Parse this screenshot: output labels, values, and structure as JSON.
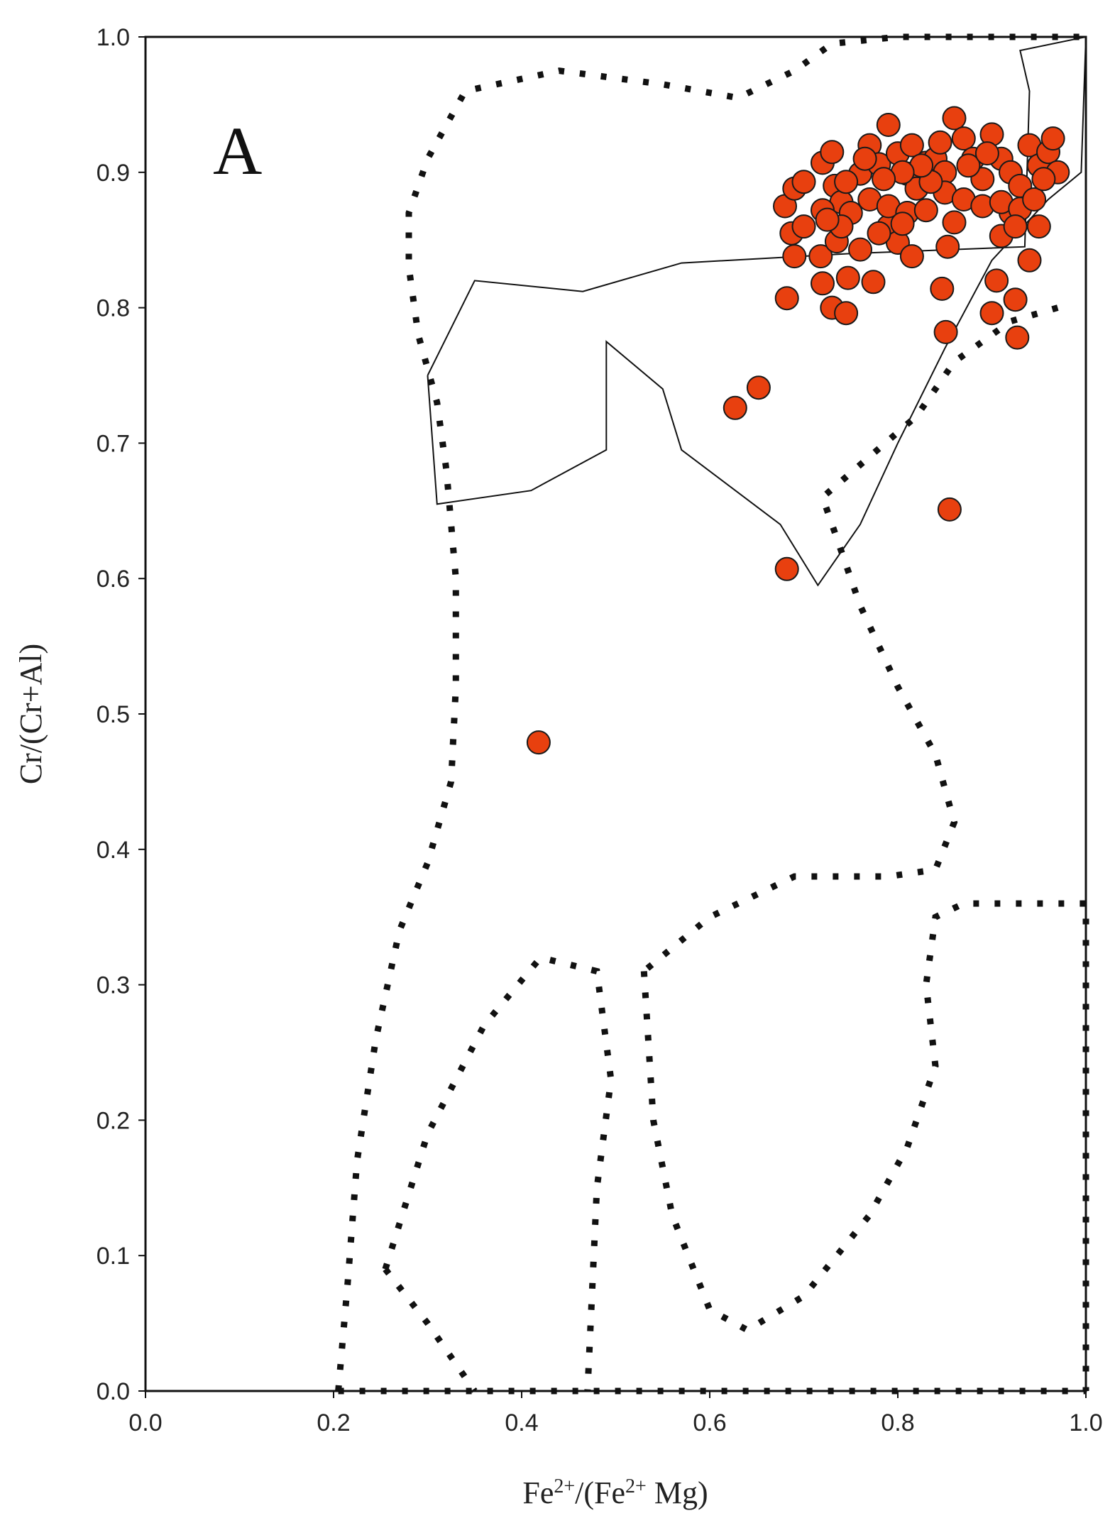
{
  "chart_data": {
    "type": "scatter",
    "panel_label": "A",
    "xlabel": {
      "parts": [
        [
          "Fe",
          ""
        ],
        [
          "2+",
          "sup"
        ],
        [
          "/(Fe",
          ""
        ],
        [
          "2+",
          "sup"
        ],
        [
          " Mg)",
          ""
        ]
      ]
    },
    "ylabel": "Cr/(Cr+Al)",
    "xlim": [
      0,
      1
    ],
    "ylim": [
      0,
      1
    ],
    "x_ticks": [
      "0.0",
      "0.2",
      "0.4",
      "0.6",
      "0.8",
      "1.0"
    ],
    "y_ticks": [
      "0.0",
      "0.1",
      "0.2",
      "0.3",
      "0.4",
      "0.5",
      "0.6",
      "0.7",
      "0.8",
      "0.9",
      "1.0"
    ],
    "grid": false,
    "marker_color": "#e8400f",
    "points": [
      [
        0.418,
        0.479
      ],
      [
        0.627,
        0.726
      ],
      [
        0.652,
        0.741
      ],
      [
        0.682,
        0.607
      ],
      [
        0.855,
        0.651
      ],
      [
        0.682,
        0.807
      ],
      [
        0.72,
        0.818
      ],
      [
        0.73,
        0.8
      ],
      [
        0.745,
        0.796
      ],
      [
        0.747,
        0.822
      ],
      [
        0.774,
        0.819
      ],
      [
        0.847,
        0.814
      ],
      [
        0.851,
        0.782
      ],
      [
        0.9,
        0.796
      ],
      [
        0.905,
        0.82
      ],
      [
        0.925,
        0.806
      ],
      [
        0.927,
        0.778
      ],
      [
        0.687,
        0.855
      ],
      [
        0.69,
        0.838
      ],
      [
        0.718,
        0.838
      ],
      [
        0.735,
        0.849
      ],
      [
        0.76,
        0.843
      ],
      [
        0.79,
        0.86
      ],
      [
        0.8,
        0.848
      ],
      [
        0.815,
        0.838
      ],
      [
        0.853,
        0.845
      ],
      [
        0.91,
        0.853
      ],
      [
        0.94,
        0.835
      ],
      [
        0.95,
        0.86
      ],
      [
        0.92,
        0.87
      ],
      [
        0.68,
        0.875
      ],
      [
        0.69,
        0.888
      ],
      [
        0.7,
        0.893
      ],
      [
        0.72,
        0.907
      ],
      [
        0.73,
        0.915
      ],
      [
        0.733,
        0.89
      ],
      [
        0.74,
        0.878
      ],
      [
        0.76,
        0.899
      ],
      [
        0.77,
        0.92
      ],
      [
        0.78,
        0.906
      ],
      [
        0.79,
        0.935
      ],
      [
        0.8,
        0.914
      ],
      [
        0.81,
        0.899
      ],
      [
        0.82,
        0.888
      ],
      [
        0.83,
        0.907
      ],
      [
        0.84,
        0.91
      ],
      [
        0.85,
        0.9
      ],
      [
        0.86,
        0.94
      ],
      [
        0.87,
        0.925
      ],
      [
        0.88,
        0.91
      ],
      [
        0.89,
        0.895
      ],
      [
        0.9,
        0.928
      ],
      [
        0.91,
        0.91
      ],
      [
        0.92,
        0.9
      ],
      [
        0.93,
        0.89
      ],
      [
        0.94,
        0.92
      ],
      [
        0.95,
        0.905
      ],
      [
        0.96,
        0.915
      ],
      [
        0.965,
        0.925
      ],
      [
        0.97,
        0.9
      ],
      [
        0.75,
        0.87
      ],
      [
        0.77,
        0.88
      ],
      [
        0.79,
        0.875
      ],
      [
        0.81,
        0.87
      ],
      [
        0.83,
        0.872
      ],
      [
        0.85,
        0.885
      ],
      [
        0.87,
        0.88
      ],
      [
        0.89,
        0.875
      ],
      [
        0.91,
        0.878
      ],
      [
        0.93,
        0.873
      ],
      [
        0.7,
        0.86
      ],
      [
        0.72,
        0.872
      ],
      [
        0.74,
        0.86
      ],
      [
        0.78,
        0.855
      ],
      [
        0.805,
        0.862
      ],
      [
        0.86,
        0.863
      ],
      [
        0.925,
        0.86
      ],
      [
        0.945,
        0.88
      ],
      [
        0.955,
        0.895
      ],
      [
        0.875,
        0.905
      ],
      [
        0.895,
        0.914
      ],
      [
        0.815,
        0.92
      ],
      [
        0.835,
        0.893
      ],
      [
        0.765,
        0.91
      ],
      [
        0.745,
        0.893
      ],
      [
        0.845,
        0.922
      ],
      [
        0.825,
        0.905
      ],
      [
        0.805,
        0.9
      ],
      [
        0.785,
        0.895
      ],
      [
        0.725,
        0.865
      ]
    ],
    "regions": {
      "solid": [
        [
          [
            0.3,
            0.75
          ],
          [
            0.35,
            0.82
          ],
          [
            0.465,
            0.812
          ],
          [
            0.57,
            0.833
          ],
          [
            0.75,
            0.84
          ],
          [
            0.935,
            0.845
          ],
          [
            0.94,
            0.96
          ],
          [
            0.93,
            0.99
          ],
          [
            1.0,
            1.0
          ],
          [
            0.995,
            0.9
          ],
          [
            0.96,
            0.88
          ],
          [
            0.9,
            0.835
          ],
          [
            0.85,
            0.77
          ],
          [
            0.8,
            0.7
          ],
          [
            0.76,
            0.64
          ],
          [
            0.715,
            0.595
          ],
          [
            0.675,
            0.64
          ],
          [
            0.57,
            0.695
          ],
          [
            0.55,
            0.74
          ],
          [
            0.49,
            0.775
          ],
          [
            0.49,
            0.695
          ],
          [
            0.41,
            0.665
          ],
          [
            0.31,
            0.655
          ],
          [
            0.3,
            0.75
          ]
        ]
      ],
      "dotted": [
        [
          [
            0.205,
            0.0
          ],
          [
            0.215,
            0.08
          ],
          [
            0.225,
            0.17
          ],
          [
            0.245,
            0.26
          ],
          [
            0.27,
            0.34
          ],
          [
            0.3,
            0.39
          ],
          [
            0.325,
            0.45
          ],
          [
            0.33,
            0.52
          ],
          [
            0.33,
            0.6
          ],
          [
            0.32,
            0.68
          ],
          [
            0.31,
            0.73
          ],
          [
            0.29,
            0.78
          ],
          [
            0.28,
            0.83
          ],
          [
            0.28,
            0.87
          ],
          [
            0.3,
            0.91
          ],
          [
            0.34,
            0.96
          ],
          [
            0.44,
            0.975
          ],
          [
            0.55,
            0.965
          ],
          [
            0.63,
            0.955
          ],
          [
            0.69,
            0.975
          ],
          [
            0.73,
            0.995
          ],
          [
            0.8,
            1.0
          ],
          [
            1.0,
            1.0
          ]
        ],
        [
          [
            0.97,
            0.8
          ],
          [
            0.92,
            0.79
          ],
          [
            0.86,
            0.76
          ],
          [
            0.82,
            0.72
          ],
          [
            0.72,
            0.66
          ],
          [
            0.76,
            0.58
          ],
          [
            0.8,
            0.52
          ],
          [
            0.84,
            0.47
          ],
          [
            0.86,
            0.42
          ],
          [
            0.84,
            0.385
          ],
          [
            0.79,
            0.38
          ],
          [
            0.69,
            0.38
          ],
          [
            0.6,
            0.35
          ],
          [
            0.53,
            0.31
          ]
        ],
        [
          [
            0.53,
            0.31
          ],
          [
            0.54,
            0.2
          ],
          [
            0.56,
            0.13
          ],
          [
            0.6,
            0.06
          ],
          [
            0.64,
            0.045
          ],
          [
            0.7,
            0.07
          ],
          [
            0.77,
            0.13
          ],
          [
            0.81,
            0.18
          ],
          [
            0.84,
            0.24
          ],
          [
            0.83,
            0.3
          ],
          [
            0.84,
            0.35
          ],
          [
            0.87,
            0.36
          ],
          [
            1.0,
            0.36
          ],
          [
            1.0,
            0.0
          ]
        ],
        [
          [
            0.205,
            0.0
          ],
          [
            1.0,
            0.0
          ]
        ],
        [
          [
            0.255,
            0.09
          ],
          [
            0.3,
            0.05
          ],
          [
            0.35,
            0.0
          ]
        ],
        [
          [
            0.255,
            0.09
          ],
          [
            0.3,
            0.19
          ],
          [
            0.36,
            0.27
          ],
          [
            0.42,
            0.32
          ],
          [
            0.48,
            0.31
          ],
          [
            0.495,
            0.23
          ],
          [
            0.48,
            0.15
          ],
          [
            0.47,
            0.0
          ]
        ]
      ]
    }
  }
}
